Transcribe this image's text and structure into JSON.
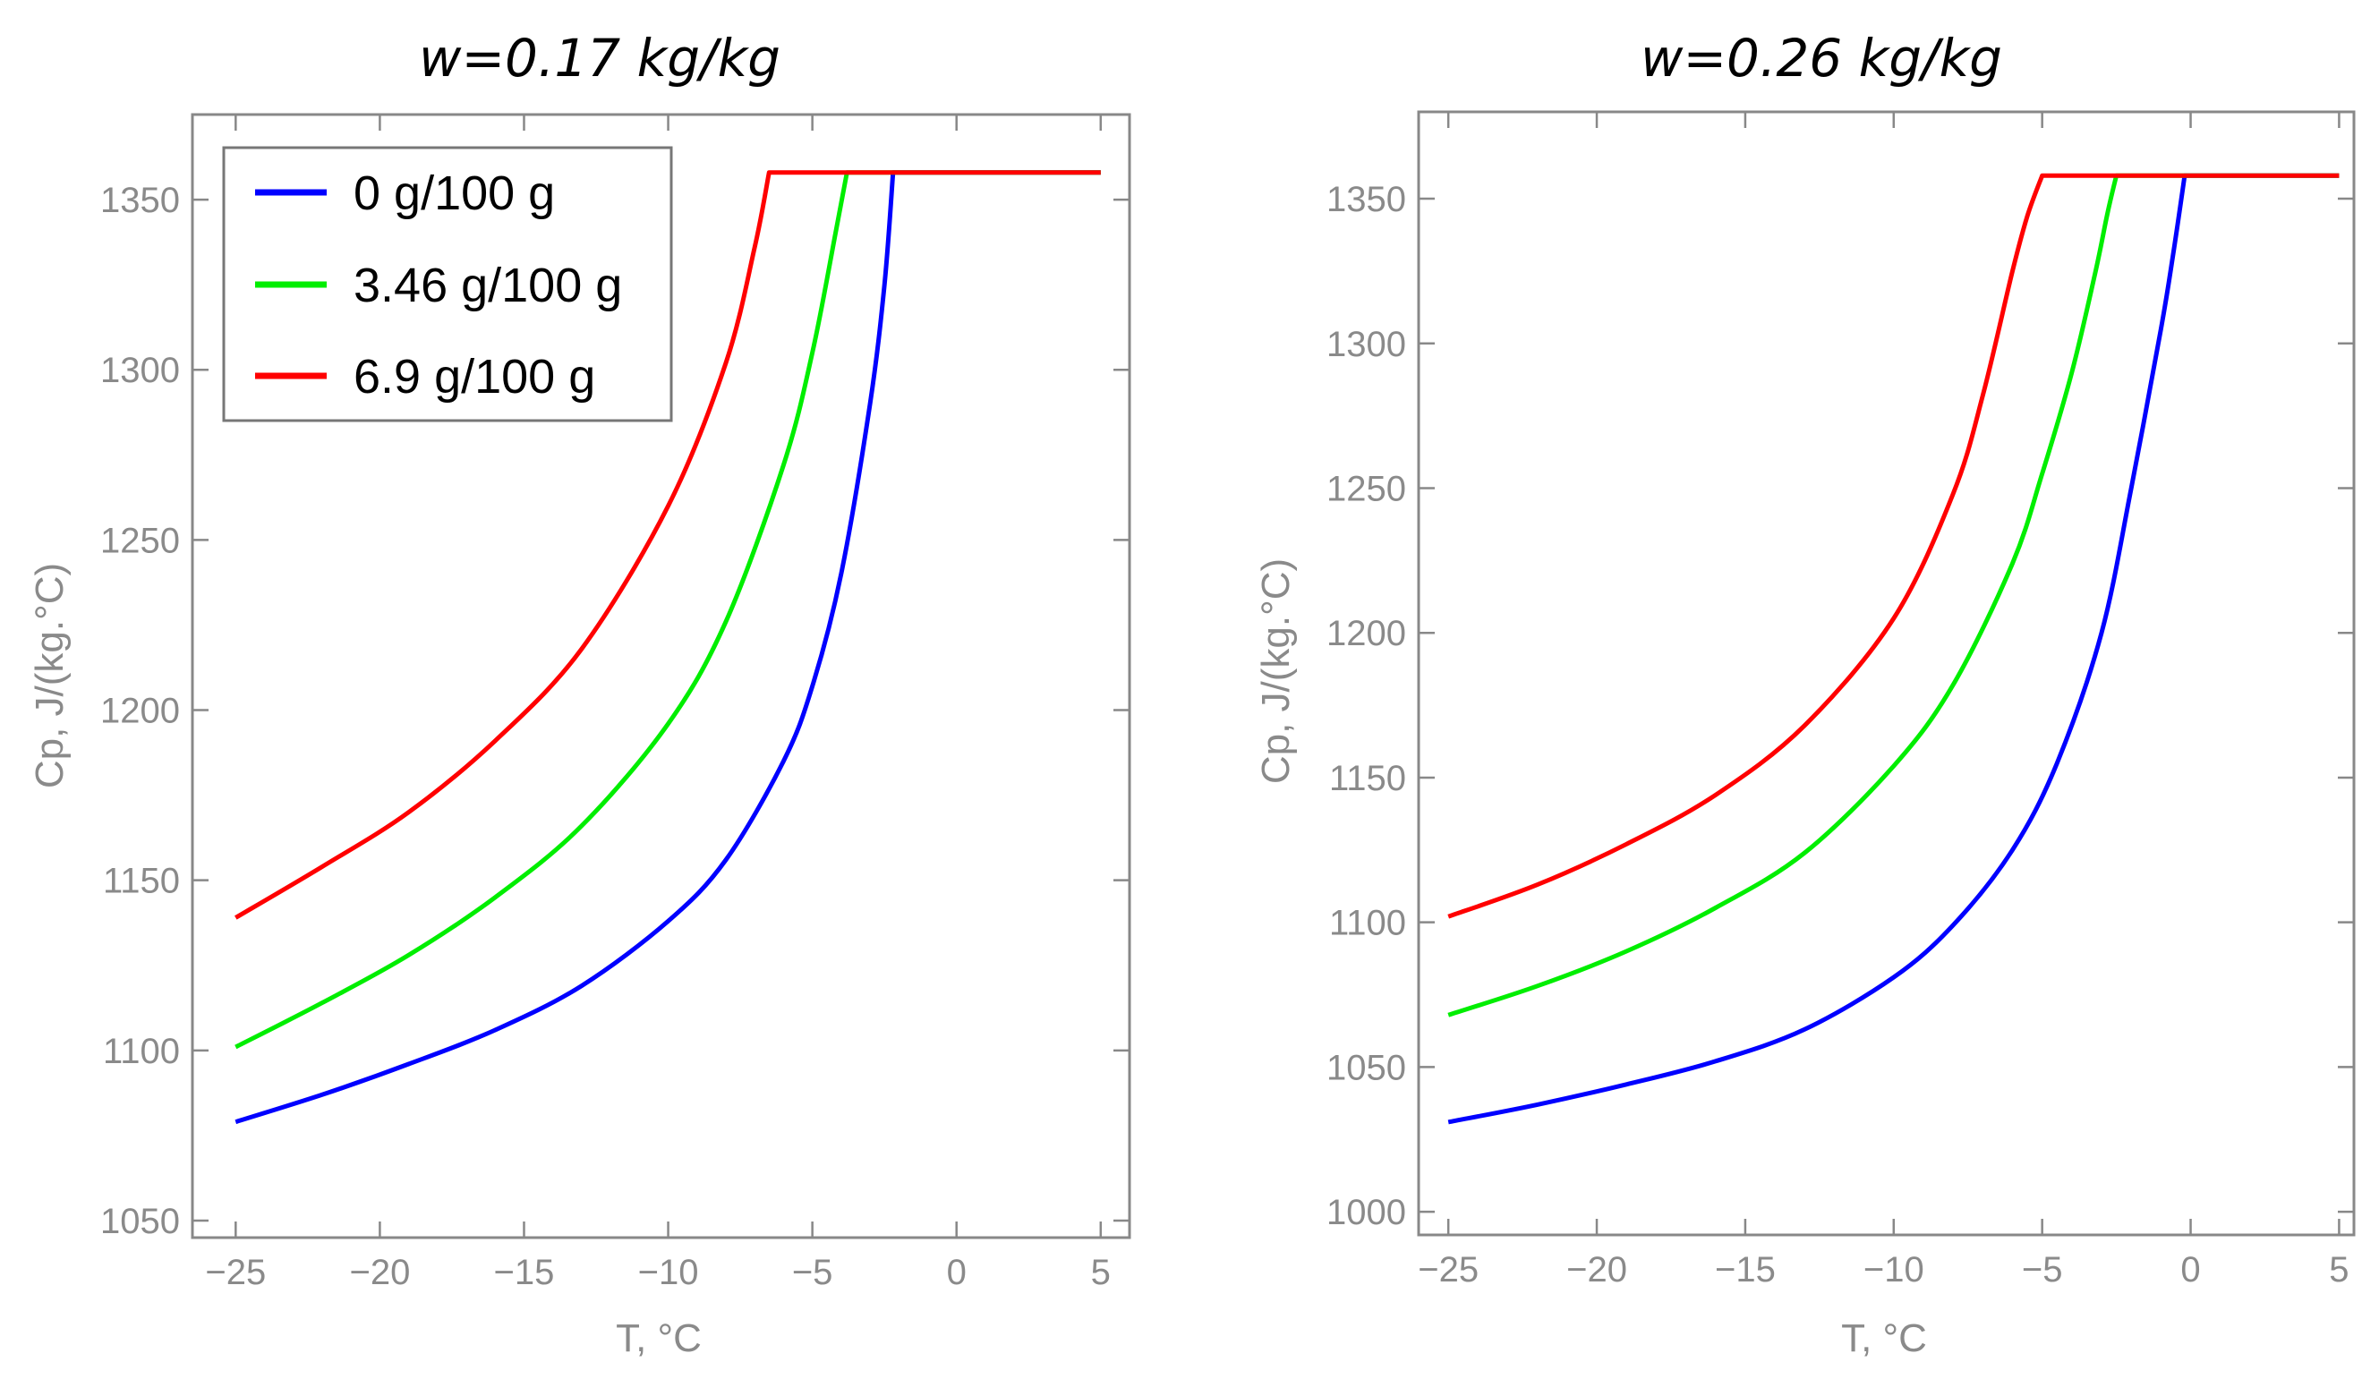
{
  "chart_data": [
    {
      "type": "line",
      "title": "w=0.17 kg/kg",
      "xlabel": "T, °C",
      "ylabel": "Cp, J/(kg.°C)",
      "xlim": [
        -26.5,
        6
      ],
      "ylim": [
        1045,
        1375
      ],
      "xticks": [
        -25,
        -20,
        -15,
        -10,
        -5,
        0,
        5
      ],
      "xtick_labels": [
        "−25",
        "−20",
        "−15",
        "−10",
        "−5",
        "0",
        "5"
      ],
      "yticks": [
        1050,
        1100,
        1150,
        1200,
        1250,
        1300,
        1350
      ],
      "ytick_labels": [
        "1050",
        "1100",
        "1150",
        "1200",
        "1250",
        "1300",
        "1350"
      ],
      "grid": false,
      "legend_position": "top-left",
      "series": [
        {
          "name": "0 g/100 g",
          "color": "#0000ff",
          "x": [
            -25,
            -22,
            -19,
            -16,
            -13,
            -10,
            -8,
            -6,
            -5,
            -4,
            -3,
            -2.5,
            -2.2,
            5
          ],
          "y": [
            1079,
            1087,
            1096,
            1106,
            1119,
            1138,
            1156,
            1185,
            1207,
            1240,
            1290,
            1325,
            1358,
            1358
          ]
        },
        {
          "name": "3.46 g/100 g",
          "color": "#00ee00",
          "x": [
            -25,
            -22,
            -19,
            -16,
            -13,
            -10,
            -8,
            -6,
            -5,
            -4.2,
            -3.8,
            5
          ],
          "y": [
            1101,
            1114,
            1128,
            1145,
            1166,
            1196,
            1226,
            1272,
            1305,
            1340,
            1358,
            1358
          ]
        },
        {
          "name": "6.9 g/100 g",
          "color": "#ff0000",
          "x": [
            -25,
            -22,
            -19,
            -16,
            -13,
            -10,
            -8,
            -7,
            -6.5,
            5
          ],
          "y": [
            1139,
            1154,
            1170,
            1191,
            1218,
            1260,
            1302,
            1336,
            1358,
            1358
          ]
        }
      ]
    },
    {
      "type": "line",
      "title": "w=0.26 kg/kg",
      "xlabel": "T, °C",
      "ylabel": "Cp, J/(kg.°C)",
      "xlim": [
        -26,
        5.5
      ],
      "ylim": [
        992,
        1380
      ],
      "xticks": [
        -25,
        -20,
        -15,
        -10,
        -5,
        0,
        5
      ],
      "xtick_labels": [
        "−25",
        "−20",
        "−15",
        "−10",
        "−5",
        "0",
        "5"
      ],
      "yticks": [
        1000,
        1050,
        1100,
        1150,
        1200,
        1250,
        1300,
        1350
      ],
      "ytick_labels": [
        "1000",
        "1050",
        "1100",
        "1150",
        "1200",
        "1250",
        "1300",
        "1350"
      ],
      "grid": false,
      "legend_position": "none",
      "series": [
        {
          "name": "0 g/100 g",
          "color": "#0000ff",
          "x": [
            -25,
            -22,
            -19,
            -16,
            -13,
            -10,
            -8,
            -6,
            -4.5,
            -3,
            -2,
            -1,
            -0.6,
            -0.2,
            5
          ],
          "y": [
            1031,
            1037,
            1044,
            1052,
            1063,
            1081,
            1099,
            1125,
            1155,
            1200,
            1250,
            1305,
            1330,
            1358,
            1358
          ]
        },
        {
          "name": "3.46 g/100 g",
          "color": "#00ee00",
          "x": [
            -25,
            -22,
            -19,
            -16,
            -13,
            -10,
            -8,
            -6,
            -5,
            -4,
            -3.2,
            -2.8,
            -2.5,
            5
          ],
          "y": [
            1068,
            1078,
            1090,
            1105,
            1124,
            1154,
            1182,
            1224,
            1255,
            1290,
            1325,
            1345,
            1358,
            1358
          ]
        },
        {
          "name": "6.9 g/100 g",
          "color": "#ff0000",
          "x": [
            -25,
            -22,
            -19,
            -16,
            -13,
            -10,
            -8,
            -7,
            -6,
            -5.5,
            -5,
            5
          ],
          "y": [
            1102,
            1113,
            1127,
            1144,
            1168,
            1205,
            1248,
            1282,
            1325,
            1344,
            1358,
            1358
          ]
        }
      ]
    }
  ],
  "legend": {
    "entries": [
      {
        "label": "0 g/100 g",
        "color": "#0000ff"
      },
      {
        "label": "3.46 g/100 g",
        "color": "#00ee00"
      },
      {
        "label": "6.9 g/100 g",
        "color": "#ff0000"
      }
    ]
  }
}
